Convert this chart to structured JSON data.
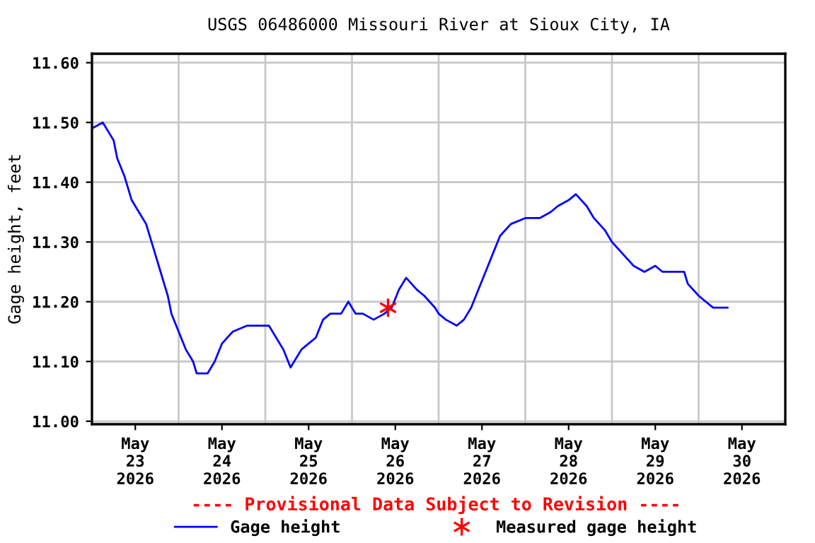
{
  "chart_data": {
    "type": "line",
    "title": "USGS 06486000 Missouri River at Sioux City, IA",
    "ylabel": "Gage height, feet",
    "annotations": [
      "---- Provisional Data Subject to Revision ----"
    ],
    "xlim": [
      "2026-05-23T00:00",
      "2026-05-31T00:00"
    ],
    "xticks": [
      {
        "value": "2026-05-23T12:00",
        "label": "May\n23\n2026"
      },
      {
        "value": "2026-05-24T00:00",
        "label": null
      },
      {
        "value": "2026-05-24T12:00",
        "label": "May\n24\n2026"
      },
      {
        "value": "2026-05-25T00:00",
        "label": null
      },
      {
        "value": "2026-05-25T12:00",
        "label": "May\n25\n2026"
      },
      {
        "value": "2026-05-26T00:00",
        "label": null
      },
      {
        "value": "2026-05-26T12:00",
        "label": "May\n26\n2026"
      },
      {
        "value": "2026-05-27T00:00",
        "label": null
      },
      {
        "value": "2026-05-27T12:00",
        "label": "May\n27\n2026"
      },
      {
        "value": "2026-05-28T00:00",
        "label": null
      },
      {
        "value": "2026-05-28T12:00",
        "label": "May\n28\n2026"
      },
      {
        "value": "2026-05-29T00:00",
        "label": null
      },
      {
        "value": "2026-05-29T12:00",
        "label": "May\n29\n2026"
      },
      {
        "value": "2026-05-30T00:00",
        "label": null
      },
      {
        "value": "2026-05-30T12:00",
        "label": "May\n30\n2026"
      }
    ],
    "ylim": [
      10.995,
      11.615
    ],
    "yticks": [
      {
        "value": 11.0,
        "label": "11.00"
      },
      {
        "value": 11.1,
        "label": "11.10"
      },
      {
        "value": 11.2,
        "label": "11.20"
      },
      {
        "value": 11.3,
        "label": "11.30"
      },
      {
        "value": 11.4,
        "label": "11.40"
      },
      {
        "value": 11.5,
        "label": "11.50"
      },
      {
        "value": 11.6,
        "label": "11.60"
      }
    ],
    "grid": true,
    "legend": "bottom",
    "series": [
      {
        "name": "Gage height",
        "color": "#0000ff",
        "marker": "none",
        "line_style": "solid",
        "x": [
          "2026-05-23T00:00",
          "2026-05-23T03:00",
          "2026-05-23T05:00",
          "2026-05-23T06:00",
          "2026-05-23T07:00",
          "2026-05-23T09:00",
          "2026-05-23T11:00",
          "2026-05-23T13:00",
          "2026-05-23T15:00",
          "2026-05-23T17:00",
          "2026-05-23T19:00",
          "2026-05-23T21:00",
          "2026-05-23T22:00",
          "2026-05-24T00:00",
          "2026-05-24T02:00",
          "2026-05-24T04:00",
          "2026-05-24T05:00",
          "2026-05-24T08:00",
          "2026-05-24T10:00",
          "2026-05-24T12:00",
          "2026-05-24T15:00",
          "2026-05-24T19:00",
          "2026-05-24T22:00",
          "2026-05-25T01:00",
          "2026-05-25T03:00",
          "2026-05-25T05:00",
          "2026-05-25T07:00",
          "2026-05-25T10:00",
          "2026-05-25T12:00",
          "2026-05-25T14:00",
          "2026-05-25T16:00",
          "2026-05-25T18:00",
          "2026-05-25T21:00",
          "2026-05-25T23:00",
          "2026-05-26T01:00",
          "2026-05-26T03:00",
          "2026-05-26T06:00",
          "2026-05-26T09:00",
          "2026-05-26T11:00",
          "2026-05-26T13:00",
          "2026-05-26T15:00",
          "2026-05-26T18:00",
          "2026-05-26T20:00",
          "2026-05-26T23:00",
          "2026-05-27T00:00",
          "2026-05-27T02:00",
          "2026-05-27T05:00",
          "2026-05-27T07:00",
          "2026-05-27T09:00",
          "2026-05-27T11:00",
          "2026-05-27T13:00",
          "2026-05-27T15:00",
          "2026-05-27T17:00",
          "2026-05-27T20:00",
          "2026-05-28T00:00",
          "2026-05-28T04:00",
          "2026-05-28T07:00",
          "2026-05-28T09:00",
          "2026-05-28T12:00",
          "2026-05-28T14:00",
          "2026-05-28T17:00",
          "2026-05-28T19:00",
          "2026-05-28T22:00",
          "2026-05-29T00:00",
          "2026-05-29T03:00",
          "2026-05-29T06:00",
          "2026-05-29T09:00",
          "2026-05-29T12:00",
          "2026-05-29T14:00",
          "2026-05-29T17:00",
          "2026-05-29T20:00",
          "2026-05-29T21:00",
          "2026-05-30T00:00",
          "2026-05-30T02:00",
          "2026-05-30T04:00",
          "2026-05-30T06:00",
          "2026-05-30T08:00"
        ],
        "values": [
          11.49,
          11.5,
          11.48,
          11.47,
          11.44,
          11.41,
          11.37,
          11.35,
          11.33,
          11.29,
          11.25,
          11.21,
          11.18,
          11.15,
          11.12,
          11.1,
          11.08,
          11.08,
          11.1,
          11.13,
          11.15,
          11.16,
          11.16,
          11.16,
          11.14,
          11.12,
          11.09,
          11.12,
          11.13,
          11.14,
          11.17,
          11.18,
          11.18,
          11.2,
          11.18,
          11.18,
          11.17,
          11.18,
          11.19,
          11.22,
          11.24,
          11.22,
          11.21,
          11.19,
          11.18,
          11.17,
          11.16,
          11.17,
          11.19,
          11.22,
          11.25,
          11.28,
          11.31,
          11.33,
          11.34,
          11.34,
          11.35,
          11.36,
          11.37,
          11.38,
          11.36,
          11.34,
          11.32,
          11.3,
          11.28,
          11.26,
          11.25,
          11.26,
          11.25,
          11.25,
          11.25,
          11.23,
          11.21,
          11.2,
          11.19,
          11.19,
          11.19
        ]
      },
      {
        "name": "Measured gage height",
        "type": "scatter",
        "color": "#ff0000",
        "marker": "cross",
        "x": [
          "2026-05-26T10:00"
        ],
        "values": [
          11.19
        ]
      }
    ]
  }
}
